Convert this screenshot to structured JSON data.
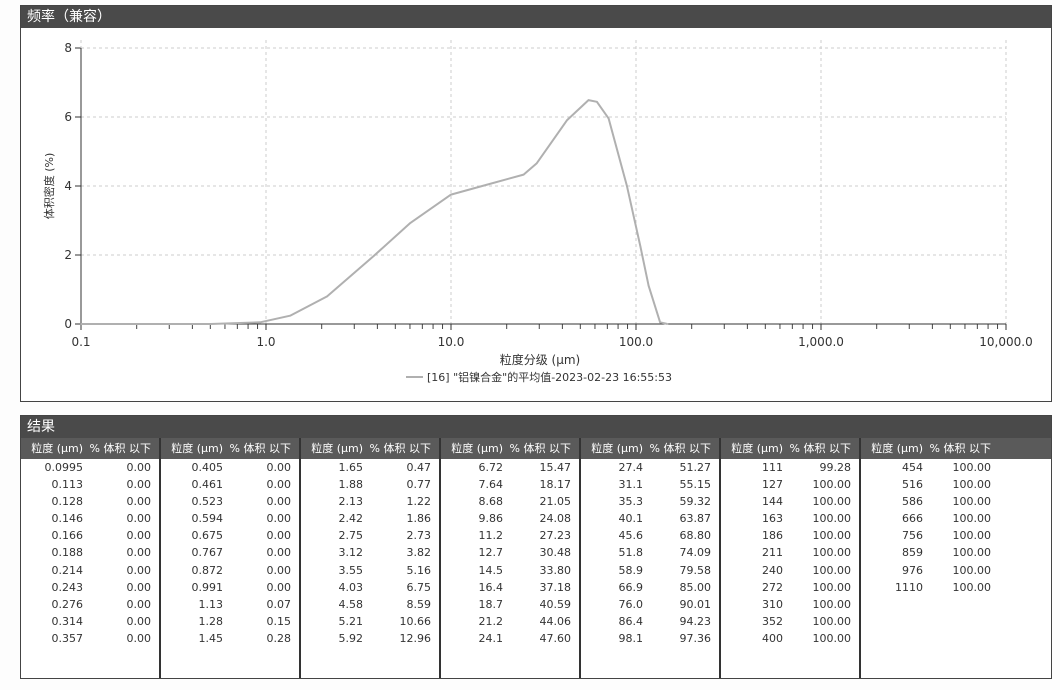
{
  "chart_panel": {
    "title": "频率（兼容）"
  },
  "chart_data": {
    "type": "line",
    "xlabel": "粒度分级 (μm)",
    "ylabel": "体积密度 (%)",
    "x_scale": "log",
    "xlim": [
      0.1,
      10000
    ],
    "ylim": [
      0,
      8
    ],
    "x_ticks": [
      "0.1",
      "1.0",
      "10.0",
      "100.0",
      "1,000.0",
      "10,000.0"
    ],
    "x_tick_values": [
      0.1,
      1,
      10,
      100,
      1000,
      10000
    ],
    "y_ticks": [
      0,
      2,
      4,
      6,
      8
    ],
    "grid": true,
    "legend_position": "bottom-center",
    "series": [
      {
        "name": "[16] \"铝镍合金\"的平均值-2023-02-23 16:55:53",
        "color": "#b0b0b0",
        "x": [
          0.1,
          0.5,
          0.93,
          1.35,
          2.14,
          3.82,
          6.03,
          10.0,
          15.7,
          24.7,
          29.1,
          42.4,
          55.4,
          61.5,
          71.1,
          89.4,
          105.5,
          117,
          135,
          148
        ],
        "y": [
          0,
          0,
          0.05,
          0.24,
          0.8,
          1.97,
          2.93,
          3.75,
          4.04,
          4.33,
          4.66,
          5.91,
          6.49,
          6.44,
          5.96,
          3.99,
          2.26,
          1.11,
          0.05,
          0
        ]
      }
    ]
  },
  "results": {
    "title": "结果",
    "col_size": "粒度 (μm)",
    "col_pct": "% 体积 以下",
    "groups": [
      {
        "rows": [
          [
            "0.0995",
            "0.00"
          ],
          [
            "0.113",
            "0.00"
          ],
          [
            "0.128",
            "0.00"
          ],
          [
            "0.146",
            "0.00"
          ],
          [
            "0.166",
            "0.00"
          ],
          [
            "0.188",
            "0.00"
          ],
          [
            "0.214",
            "0.00"
          ],
          [
            "0.243",
            "0.00"
          ],
          [
            "0.276",
            "0.00"
          ],
          [
            "0.314",
            "0.00"
          ],
          [
            "0.357",
            "0.00"
          ]
        ]
      },
      {
        "rows": [
          [
            "0.405",
            "0.00"
          ],
          [
            "0.461",
            "0.00"
          ],
          [
            "0.523",
            "0.00"
          ],
          [
            "0.594",
            "0.00"
          ],
          [
            "0.675",
            "0.00"
          ],
          [
            "0.767",
            "0.00"
          ],
          [
            "0.872",
            "0.00"
          ],
          [
            "0.991",
            "0.00"
          ],
          [
            "1.13",
            "0.07"
          ],
          [
            "1.28",
            "0.15"
          ],
          [
            "1.45",
            "0.28"
          ]
        ]
      },
      {
        "rows": [
          [
            "1.65",
            "0.47"
          ],
          [
            "1.88",
            "0.77"
          ],
          [
            "2.13",
            "1.22"
          ],
          [
            "2.42",
            "1.86"
          ],
          [
            "2.75",
            "2.73"
          ],
          [
            "3.12",
            "3.82"
          ],
          [
            "3.55",
            "5.16"
          ],
          [
            "4.03",
            "6.75"
          ],
          [
            "4.58",
            "8.59"
          ],
          [
            "5.21",
            "10.66"
          ],
          [
            "5.92",
            "12.96"
          ]
        ]
      },
      {
        "rows": [
          [
            "6.72",
            "15.47"
          ],
          [
            "7.64",
            "18.17"
          ],
          [
            "8.68",
            "21.05"
          ],
          [
            "9.86",
            "24.08"
          ],
          [
            "11.2",
            "27.23"
          ],
          [
            "12.7",
            "30.48"
          ],
          [
            "14.5",
            "33.80"
          ],
          [
            "16.4",
            "37.18"
          ],
          [
            "18.7",
            "40.59"
          ],
          [
            "21.2",
            "44.06"
          ],
          [
            "24.1",
            "47.60"
          ]
        ]
      },
      {
        "rows": [
          [
            "27.4",
            "51.27"
          ],
          [
            "31.1",
            "55.15"
          ],
          [
            "35.3",
            "59.32"
          ],
          [
            "40.1",
            "63.87"
          ],
          [
            "45.6",
            "68.80"
          ],
          [
            "51.8",
            "74.09"
          ],
          [
            "58.9",
            "79.58"
          ],
          [
            "66.9",
            "85.00"
          ],
          [
            "76.0",
            "90.01"
          ],
          [
            "86.4",
            "94.23"
          ],
          [
            "98.1",
            "97.36"
          ]
        ]
      },
      {
        "rows": [
          [
            "111",
            "99.28"
          ],
          [
            "127",
            "100.00"
          ],
          [
            "144",
            "100.00"
          ],
          [
            "163",
            "100.00"
          ],
          [
            "186",
            "100.00"
          ],
          [
            "211",
            "100.00"
          ],
          [
            "240",
            "100.00"
          ],
          [
            "272",
            "100.00"
          ],
          [
            "310",
            "100.00"
          ],
          [
            "352",
            "100.00"
          ],
          [
            "400",
            "100.00"
          ]
        ]
      },
      {
        "rows": [
          [
            "454",
            "100.00"
          ],
          [
            "516",
            "100.00"
          ],
          [
            "586",
            "100.00"
          ],
          [
            "666",
            "100.00"
          ],
          [
            "756",
            "100.00"
          ],
          [
            "859",
            "100.00"
          ],
          [
            "976",
            "100.00"
          ],
          [
            "1110",
            "100.00"
          ]
        ]
      }
    ]
  }
}
